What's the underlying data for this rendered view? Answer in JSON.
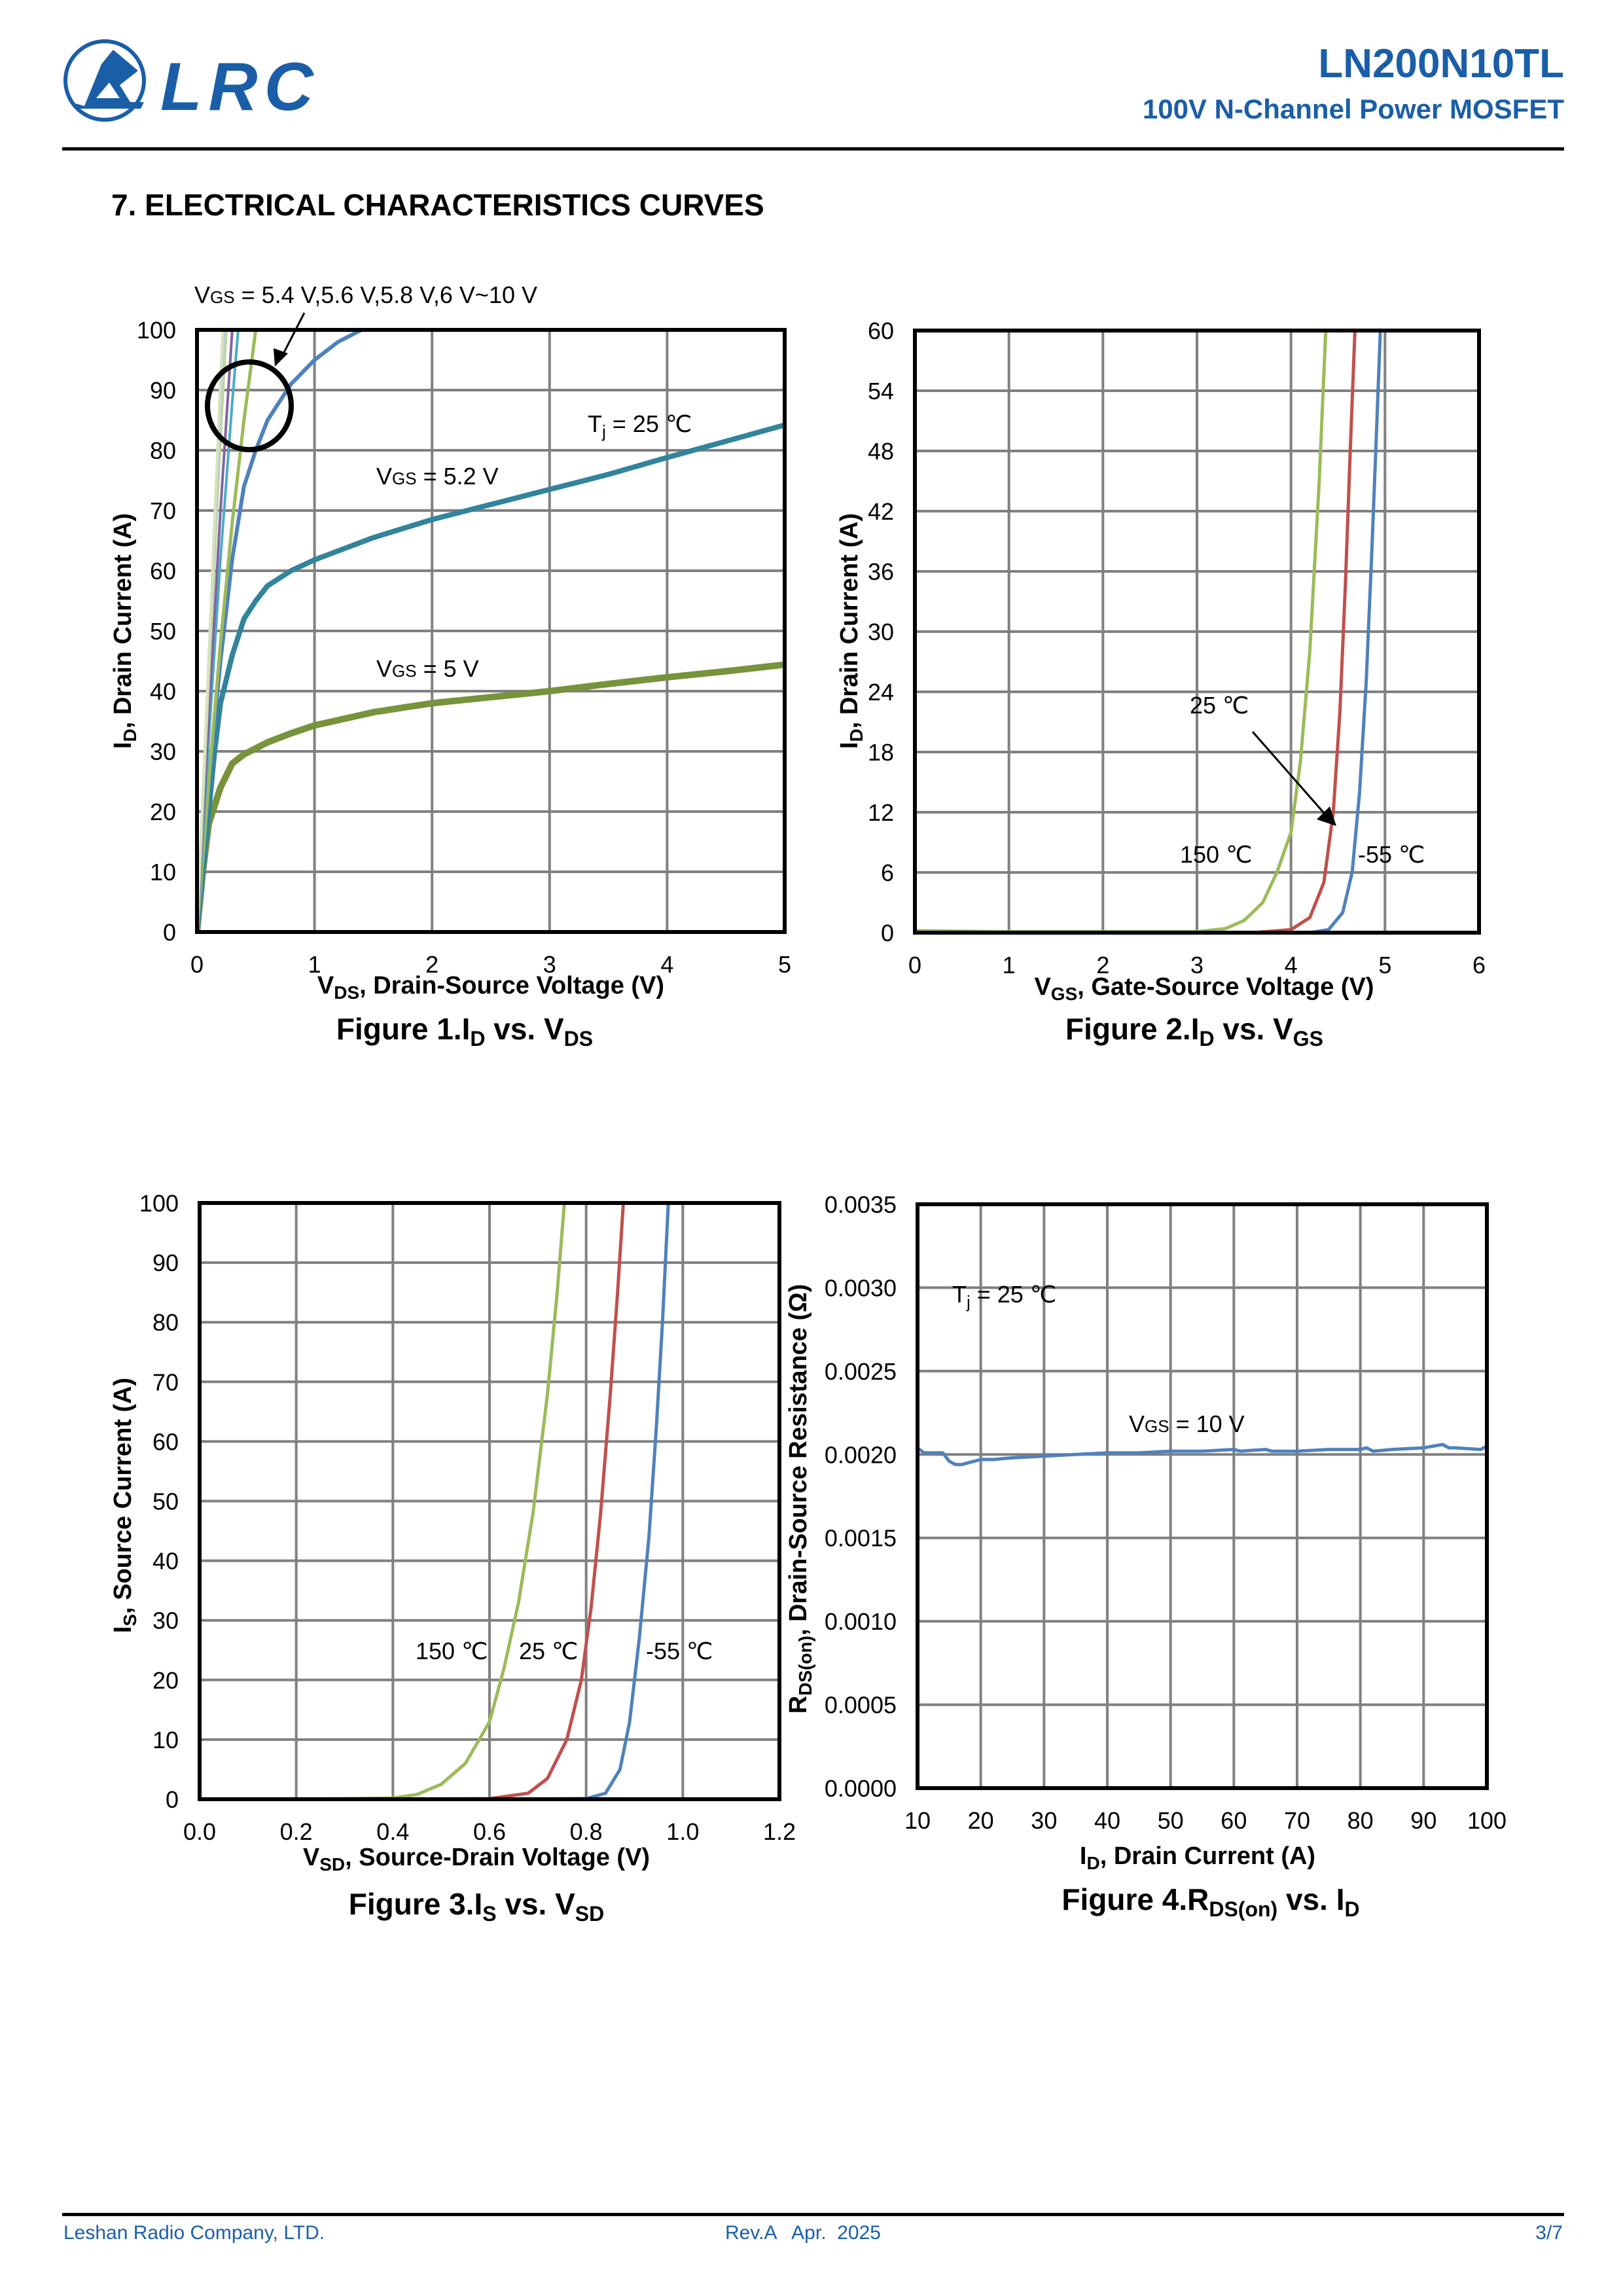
{
  "header": {
    "logo_text": "LRC",
    "part_number": "LN200N10TL",
    "subtitle": "100V N-Channel Power MOSFET",
    "brand_color": "#1a5ea8"
  },
  "section_title": "7. ELECTRICAL CHARACTERISTICS CURVES",
  "footer": {
    "company": "Leshan Radio Company, LTD.",
    "revision": "Rev.A   Apr.  2025",
    "page": "3/7"
  },
  "chart_data": [
    {
      "type": "line",
      "caption": {
        "prefix": "Figure 1.I",
        "sub1": "D",
        "mid": " vs. V",
        "sub2": "DS"
      },
      "xlabel": {
        "main": "V",
        "sub": "DS",
        "rest": ", Drain-Source Voltage (V)"
      },
      "ylabel": {
        "main": "I",
        "sub": "D",
        "rest": ", Drain Current (A)"
      },
      "xlim": [
        0,
        5
      ],
      "ylim": [
        0,
        100
      ],
      "xticks": [
        "0",
        "1",
        "2",
        "3",
        "4",
        "5"
      ],
      "yticks": [
        "0",
        "10",
        "20",
        "30",
        "40",
        "50",
        "60",
        "70",
        "80",
        "90",
        "100"
      ],
      "grid": true,
      "annotations": {
        "vgs_group": {
          "main": "V",
          "sub": "GS",
          "rest": " = 5.4 V,5.6 V,5.8 V,6 V~10 V"
        },
        "tj": {
          "main": "T",
          "sub": "j",
          "rest": " = 25 ℃"
        },
        "vgs52": {
          "main": "V",
          "sub": "GS",
          "rest": " = 5.2 V"
        },
        "vgs5": {
          "main": "V",
          "sub": "GS",
          "rest": " = 5 V"
        }
      },
      "series": [
        {
          "name": "VGS = 5 V",
          "color": "#77933c",
          "x": [
            0,
            0.05,
            0.1,
            0.2,
            0.3,
            0.4,
            0.6,
            0.8,
            1.0,
            1.5,
            2.0,
            2.5,
            3.0,
            3.5,
            4.0,
            4.5,
            5.0
          ],
          "y": [
            0,
            10,
            18,
            24,
            28,
            29.5,
            31.5,
            33,
            34.3,
            36.5,
            38,
            39,
            40,
            41.2,
            42.3,
            43.3,
            44.4
          ]
        },
        {
          "name": "VGS = 5.2 V",
          "color": "#31849b",
          "x": [
            0,
            0.05,
            0.1,
            0.15,
            0.2,
            0.3,
            0.4,
            0.5,
            0.6,
            0.8,
            1.0,
            1.5,
            2.0,
            2.5,
            3.0,
            3.5,
            4.0,
            4.5,
            5.0
          ],
          "y": [
            0,
            10,
            20,
            30,
            38,
            46,
            52,
            55,
            57.5,
            60,
            61.8,
            65.5,
            68.5,
            71,
            73.5,
            76,
            78.8,
            81.5,
            84.2
          ]
        },
        {
          "name": "VGS = 5.4 V",
          "color": "#4f81bd",
          "x": [
            0,
            0.1,
            0.2,
            0.3,
            0.4,
            0.5,
            0.6,
            0.7,
            0.8,
            1.0,
            1.2,
            1.4
          ],
          "y": [
            0,
            25,
            45,
            62,
            74,
            80,
            85,
            88,
            91,
            95,
            98,
            100
          ]
        },
        {
          "name": "VGS = 5.6 V",
          "color": "#9bbb59",
          "x": [
            0,
            0.1,
            0.2,
            0.3,
            0.4,
            0.5
          ],
          "y": [
            0,
            25,
            48,
            68,
            85,
            100
          ]
        },
        {
          "name": "VGS = 5.8 V",
          "color": "#4bacc6",
          "x": [
            0,
            0.1,
            0.2,
            0.3,
            0.35
          ],
          "y": [
            0,
            32,
            62,
            88,
            100
          ]
        },
        {
          "name": "VGS = 6 V",
          "color": "#8064a2",
          "x": [
            0,
            0.1,
            0.2,
            0.3
          ],
          "y": [
            0,
            36,
            70,
            100
          ]
        },
        {
          "name": "VGS = 7 V",
          "color": "#c3d69b",
          "x": [
            0,
            0.1,
            0.2,
            0.25
          ],
          "y": [
            0,
            42,
            82,
            100
          ]
        },
        {
          "name": "VGS = 8 V",
          "color": "#b9cde5",
          "x": [
            0,
            0.1,
            0.2,
            0.23
          ],
          "y": [
            0,
            45,
            88,
            100
          ]
        },
        {
          "name": "VGS = 10 V",
          "color": "#d7e4bd",
          "x": [
            0,
            0.1,
            0.2,
            0.22
          ],
          "y": [
            0,
            46,
            92,
            100
          ]
        }
      ]
    },
    {
      "type": "line",
      "caption": {
        "prefix": "Figure 2.I",
        "sub1": "D",
        "mid": " vs. V",
        "sub2": "GS"
      },
      "xlabel": {
        "main": "V",
        "sub": "GS",
        "rest": ", Gate-Source Voltage (V)"
      },
      "ylabel": {
        "main": "I",
        "sub": "D",
        "rest": ", Drain Current (A)"
      },
      "xlim": [
        0,
        6
      ],
      "ylim": [
        0,
        60
      ],
      "xticks": [
        "0",
        "1",
        "2",
        "3",
        "4",
        "5",
        "6"
      ],
      "yticks": [
        "0",
        "6",
        "12",
        "18",
        "24",
        "30",
        "36",
        "42",
        "48",
        "54",
        "60"
      ],
      "grid": true,
      "annotations": {
        "t25": "25 ℃",
        "t150": "150 ℃",
        "tm55": "-55 ℃"
      },
      "series": [
        {
          "name": "150 ℃",
          "color": "#9bbb59",
          "x": [
            0,
            1,
            2,
            3,
            3.3,
            3.5,
            3.7,
            3.85,
            4.0,
            4.1,
            4.2,
            4.3,
            4.37
          ],
          "y": [
            0.2,
            0.1,
            0.1,
            0.1,
            0.4,
            1.2,
            3,
            6,
            10,
            17,
            28,
            45,
            60
          ]
        },
        {
          "name": "25 ℃",
          "color": "#c0504d",
          "x": [
            3.0,
            3.6,
            4.0,
            4.2,
            4.35,
            4.45,
            4.52,
            4.58,
            4.63,
            4.68
          ],
          "y": [
            0,
            0,
            0.3,
            1.5,
            5,
            12,
            22,
            35,
            48,
            60
          ]
        },
        {
          "name": "-55 ℃",
          "color": "#4f81bd",
          "x": [
            3.8,
            4.2,
            4.4,
            4.55,
            4.65,
            4.73,
            4.8,
            4.86,
            4.91,
            4.95
          ],
          "y": [
            0,
            0,
            0.3,
            2,
            6,
            14,
            25,
            38,
            50,
            60
          ]
        }
      ]
    },
    {
      "type": "line",
      "caption": {
        "prefix": "Figure 3.I",
        "sub1": "S",
        "mid": " vs. V",
        "sub2": "SD"
      },
      "xlabel": {
        "main": "V",
        "sub": "SD",
        "rest": ", Source-Drain Voltage (V)"
      },
      "ylabel": {
        "main": "I",
        "sub": "S",
        "rest": ", Source Current (A)"
      },
      "xlim": [
        0,
        1.2
      ],
      "ylim": [
        0,
        100
      ],
      "xticks": [
        "0.0",
        "0.2",
        "0.4",
        "0.6",
        "0.8",
        "1.0",
        "1.2"
      ],
      "yticks": [
        "0",
        "10",
        "20",
        "30",
        "40",
        "50",
        "60",
        "70",
        "80",
        "90",
        "100"
      ],
      "grid": true,
      "annotations": {
        "t150": "150 ℃",
        "t25": "25 ℃",
        "tm55": "-55 ℃"
      },
      "series": [
        {
          "name": "150 ℃",
          "color": "#9bbb59",
          "x": [
            0.2,
            0.4,
            0.45,
            0.5,
            0.55,
            0.6,
            0.63,
            0.66,
            0.69,
            0.72,
            0.74,
            0.755
          ],
          "y": [
            0,
            0.2,
            0.8,
            2.5,
            6,
            13,
            22,
            33,
            48,
            68,
            85,
            100
          ]
        },
        {
          "name": "25 ℃",
          "color": "#c0504d",
          "x": [
            0.4,
            0.6,
            0.68,
            0.72,
            0.76,
            0.79,
            0.81,
            0.83,
            0.85,
            0.865,
            0.877
          ],
          "y": [
            0,
            0.1,
            1,
            3.5,
            10,
            20,
            32,
            48,
            68,
            85,
            100
          ]
        },
        {
          "name": "-55 ℃",
          "color": "#4f81bd",
          "x": [
            0.6,
            0.8,
            0.84,
            0.87,
            0.89,
            0.91,
            0.93,
            0.945,
            0.958,
            0.97
          ],
          "y": [
            0,
            0.1,
            1,
            5,
            13,
            27,
            44,
            62,
            80,
            100
          ]
        }
      ]
    },
    {
      "type": "line",
      "caption": {
        "prefix": "Figure 4.R",
        "sub1": "DS(on)",
        "mid": " vs. I",
        "sub2": "D"
      },
      "xlabel": {
        "main": "I",
        "sub": "D",
        "rest": ", Drain Current (A)"
      },
      "ylabel": {
        "main": "R",
        "sub": "DS(on)",
        "rest": ", Drain-Source Resistance (Ω)"
      },
      "xlim": [
        10,
        100
      ],
      "ylim": [
        0,
        0.0035
      ],
      "xticks": [
        "10",
        "20",
        "30",
        "40",
        "50",
        "60",
        "70",
        "80",
        "90",
        "100"
      ],
      "yticks": [
        "0.0000",
        "0.0005",
        "0.0010",
        "0.0015",
        "0.0020",
        "0.0025",
        "0.0030",
        "0.0035"
      ],
      "grid": true,
      "annotations": {
        "tj": {
          "main": "T",
          "sub": "j",
          "rest": " = 25 ℃"
        },
        "vgs": {
          "main": "V",
          "sub": "GS",
          "rest": " = 10 V"
        }
      },
      "series": [
        {
          "name": "VGS = 10 V",
          "color": "#4f81bd",
          "x": [
            10,
            11,
            12,
            14,
            15,
            16,
            17,
            18,
            20,
            22,
            25,
            30,
            35,
            40,
            45,
            50,
            55,
            60,
            61,
            65,
            66,
            70,
            75,
            80,
            81,
            82,
            85,
            90,
            93,
            94,
            95,
            99,
            100
          ],
          "y": [
            0.00204,
            0.00201,
            0.00201,
            0.00201,
            0.00196,
            0.00194,
            0.00194,
            0.00195,
            0.00197,
            0.00197,
            0.00198,
            0.00199,
            0.002,
            0.00201,
            0.00201,
            0.00202,
            0.00202,
            0.00203,
            0.00202,
            0.00203,
            0.00202,
            0.00202,
            0.00203,
            0.00203,
            0.00204,
            0.00202,
            0.00203,
            0.00204,
            0.00206,
            0.00204,
            0.00204,
            0.00203,
            0.00205
          ]
        }
      ]
    }
  ]
}
